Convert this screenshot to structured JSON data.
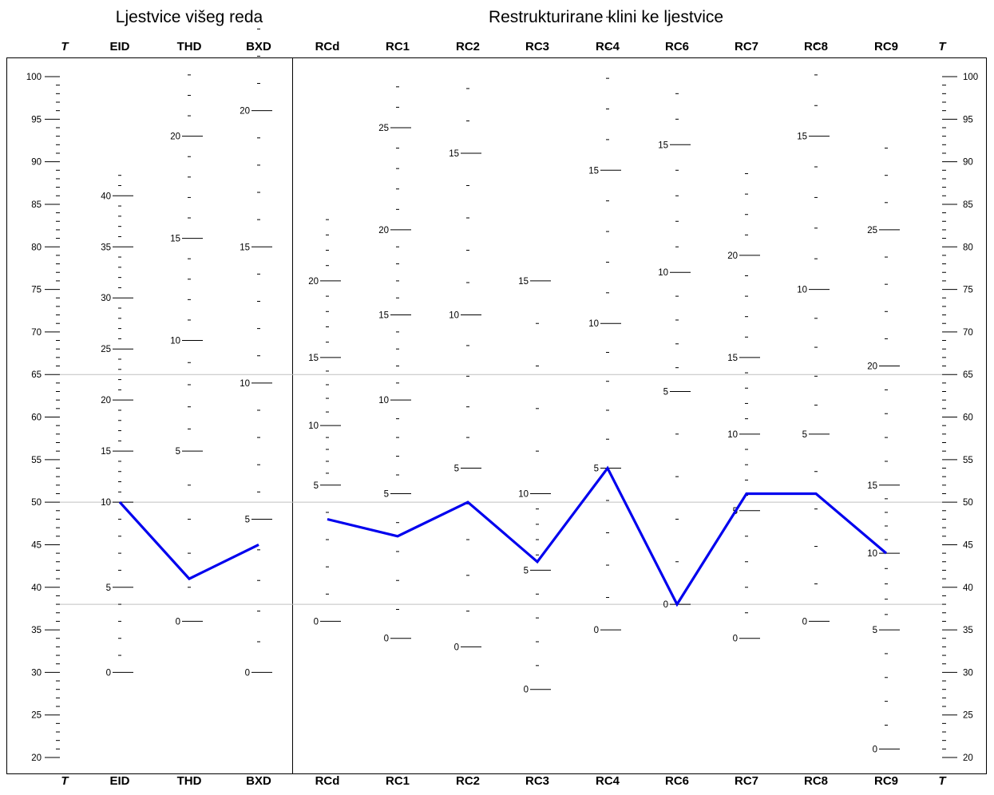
{
  "chart_data": {
    "type": "line",
    "groups": [
      {
        "label": "Ljestvice višeg reda",
        "columns": [
          "EID",
          "THD",
          "BXD"
        ]
      },
      {
        "label": "Restrukturirane klini  ke ljestvice",
        "columns": [
          "RCd",
          "RC1",
          "RC2",
          "RC3",
          "RC4",
          "RC6",
          "RC7",
          "RC8",
          "RC9"
        ]
      }
    ],
    "t_axis": {
      "label": "T",
      "min": 20,
      "max": 100,
      "labels": [
        20,
        25,
        30,
        35,
        40,
        45,
        50,
        55,
        60,
        65,
        70,
        75,
        80,
        85,
        90,
        95,
        100
      ]
    },
    "reference_lines_t": [
      65,
      50,
      38
    ],
    "scales": [
      {
        "name": "EID",
        "raw_to_t": [
          [
            0,
            30
          ],
          [
            10,
            50
          ],
          [
            20,
            62
          ],
          [
            30,
            74
          ],
          [
            40,
            86
          ]
        ],
        "ticks": [
          0,
          1,
          2,
          3,
          4,
          5,
          6,
          7,
          8,
          9,
          10,
          11,
          12,
          13,
          14,
          15,
          16,
          17,
          18,
          19,
          20,
          21,
          22,
          23,
          24,
          25,
          26,
          27,
          28,
          29,
          30,
          31,
          32,
          33,
          34,
          35,
          36,
          37,
          38,
          39,
          40,
          41,
          42
        ],
        "labels": [
          0,
          5,
          10,
          15,
          20,
          25,
          30,
          35,
          40
        ]
      },
      {
        "name": "THD",
        "raw_to_t": [
          [
            0,
            36
          ],
          [
            5,
            56
          ],
          [
            10,
            69
          ],
          [
            15,
            81
          ],
          [
            20,
            93
          ]
        ],
        "ticks": [
          0,
          1,
          2,
          3,
          4,
          5,
          6,
          7,
          8,
          9,
          10,
          11,
          12,
          13,
          14,
          15,
          16,
          17,
          18,
          19,
          20,
          21,
          22,
          23
        ],
        "labels": [
          0,
          5,
          10,
          15,
          20
        ]
      },
      {
        "name": "BXD",
        "raw_to_t": [
          [
            0,
            30
          ],
          [
            5,
            48
          ],
          [
            10,
            64
          ],
          [
            15,
            80
          ],
          [
            20,
            96
          ]
        ],
        "ticks": [
          0,
          1,
          2,
          3,
          4,
          5,
          6,
          7,
          8,
          9,
          10,
          11,
          12,
          13,
          14,
          15,
          16,
          17,
          18,
          19,
          20,
          21,
          22,
          23
        ],
        "labels": [
          0,
          5,
          10,
          15,
          20
        ]
      },
      {
        "name": "RCd",
        "raw_to_t": [
          [
            0,
            36
          ],
          [
            5,
            52
          ],
          [
            10,
            59
          ],
          [
            15,
            67
          ],
          [
            20,
            76
          ]
        ],
        "ticks": [
          0,
          1,
          2,
          3,
          4,
          5,
          6,
          7,
          8,
          9,
          10,
          11,
          12,
          13,
          14,
          15,
          16,
          17,
          18,
          19,
          20,
          21,
          22,
          23,
          24
        ],
        "labels": [
          0,
          5,
          10,
          15,
          20
        ]
      },
      {
        "name": "RC1",
        "raw_to_t": [
          [
            0,
            34
          ],
          [
            5,
            51
          ],
          [
            10,
            62
          ],
          [
            15,
            72
          ],
          [
            20,
            82
          ],
          [
            25,
            94
          ]
        ],
        "ticks": [
          0,
          1,
          2,
          3,
          4,
          5,
          6,
          7,
          8,
          9,
          10,
          11,
          12,
          13,
          14,
          15,
          16,
          17,
          18,
          19,
          20,
          21,
          22,
          23,
          24,
          25,
          26,
          27
        ],
        "labels": [
          0,
          5,
          10,
          15,
          20,
          25
        ]
      },
      {
        "name": "RC2",
        "raw_to_t": [
          [
            0,
            33
          ],
          [
            5,
            54
          ],
          [
            10,
            72
          ],
          [
            15,
            91
          ]
        ],
        "ticks": [
          0,
          1,
          2,
          3,
          4,
          5,
          6,
          7,
          8,
          9,
          10,
          11,
          12,
          13,
          14,
          15,
          16,
          17
        ],
        "labels": [
          0,
          5,
          10,
          15
        ]
      },
      {
        "name": "RC3",
        "raw_to_t": [
          [
            0,
            28
          ],
          [
            5,
            42
          ],
          [
            10,
            51
          ],
          [
            15,
            76
          ]
        ],
        "ticks": [
          0,
          1,
          2,
          3,
          4,
          5,
          6,
          7,
          8,
          9,
          10,
          11,
          12,
          13,
          14,
          15
        ],
        "labels": [
          0,
          5,
          10,
          15
        ]
      },
      {
        "name": "RC4",
        "raw_to_t": [
          [
            0,
            35
          ],
          [
            5,
            54
          ],
          [
            10,
            71
          ],
          [
            15,
            89
          ]
        ],
        "ticks": [
          0,
          1,
          2,
          3,
          4,
          5,
          6,
          7,
          8,
          9,
          10,
          11,
          12,
          13,
          14,
          15,
          16,
          17,
          18,
          19,
          20
        ],
        "labels": [
          0,
          5,
          10,
          15
        ]
      },
      {
        "name": "RC6",
        "raw_to_t": [
          [
            0,
            38
          ],
          [
            5,
            63
          ],
          [
            10,
            77
          ],
          [
            15,
            92
          ]
        ],
        "ticks": [
          0,
          1,
          2,
          3,
          4,
          5,
          6,
          7,
          8,
          9,
          10,
          11,
          12,
          13,
          14,
          15,
          16,
          17
        ],
        "labels": [
          0,
          5,
          10,
          15
        ]
      },
      {
        "name": "RC7",
        "raw_to_t": [
          [
            0,
            34
          ],
          [
            5,
            49
          ],
          [
            10,
            58
          ],
          [
            15,
            67
          ],
          [
            20,
            79
          ]
        ],
        "ticks": [
          0,
          1,
          2,
          3,
          4,
          5,
          6,
          7,
          8,
          9,
          10,
          11,
          12,
          13,
          14,
          15,
          16,
          17,
          18,
          19,
          20,
          21,
          22,
          23,
          24
        ],
        "labels": [
          0,
          5,
          10,
          15,
          20
        ]
      },
      {
        "name": "RC8",
        "raw_to_t": [
          [
            0,
            36
          ],
          [
            5,
            58
          ],
          [
            10,
            75
          ],
          [
            15,
            93
          ]
        ],
        "ticks": [
          0,
          1,
          2,
          3,
          4,
          5,
          6,
          7,
          8,
          9,
          10,
          11,
          12,
          13,
          14,
          15,
          16,
          17,
          18
        ],
        "labels": [
          0,
          5,
          10,
          15
        ]
      },
      {
        "name": "RC9",
        "raw_to_t": [
          [
            0,
            21
          ],
          [
            5,
            35
          ],
          [
            10,
            44
          ],
          [
            15,
            52
          ],
          [
            20,
            66
          ],
          [
            25,
            82
          ]
        ],
        "ticks": [
          0,
          1,
          2,
          3,
          4,
          5,
          6,
          7,
          8,
          9,
          10,
          11,
          12,
          13,
          14,
          15,
          16,
          17,
          18,
          19,
          20,
          21,
          22,
          23,
          24,
          25,
          26,
          27,
          28
        ],
        "labels": [
          0,
          5,
          10,
          15,
          20,
          25
        ]
      }
    ],
    "series": [
      {
        "columns": [
          "EID",
          "THD",
          "BXD"
        ],
        "t_values": [
          50,
          41,
          45
        ]
      },
      {
        "columns": [
          "RCd",
          "RC1",
          "RC2",
          "RC3",
          "RC4",
          "RC6",
          "RC7",
          "RC8",
          "RC9"
        ],
        "t_values": [
          48,
          46,
          50,
          43,
          54,
          38,
          51,
          51,
          44
        ]
      }
    ],
    "colors": {
      "profile": "#0000ee",
      "reference": "#c0c0c0"
    }
  }
}
